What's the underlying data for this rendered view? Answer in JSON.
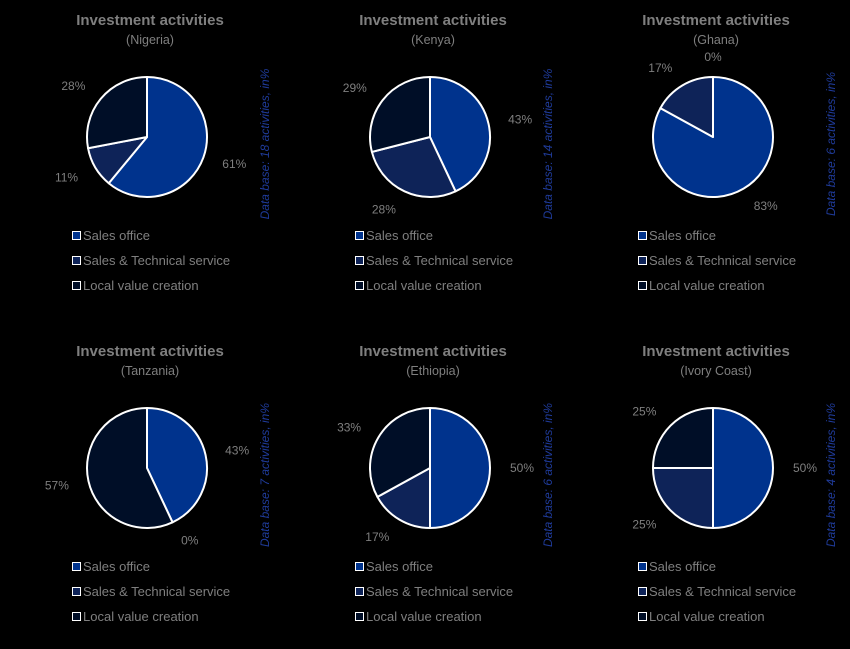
{
  "legend_labels": [
    "Sales office",
    "Sales & Technical service",
    "Local value creation"
  ],
  "colors": [
    "#00338d",
    "#0e2358",
    "#000e27"
  ],
  "chart_data": [
    {
      "type": "pie",
      "title": "Investment activities",
      "subtitle": "(Nigeria)",
      "side_label": "Data base: 18 activities, in%",
      "categories": [
        "Sales office",
        "Sales & Technical service",
        "Local value creation"
      ],
      "values": [
        61,
        11,
        28
      ]
    },
    {
      "type": "pie",
      "title": "Investment activities",
      "subtitle": "(Kenya)",
      "side_label": "Data base: 14 activities, in%",
      "categories": [
        "Sales office",
        "Sales & Technical service",
        "Local value creation"
      ],
      "values": [
        43,
        28,
        29
      ]
    },
    {
      "type": "pie",
      "title": "Investment activities",
      "subtitle": "(Ghana)",
      "side_label": "Data base: 6 activities, in%",
      "categories": [
        "Sales office",
        "Sales & Technical service",
        "Local value creation"
      ],
      "values": [
        83,
        17,
        0
      ]
    },
    {
      "type": "pie",
      "title": "Investment activities",
      "subtitle": "(Tanzania)",
      "side_label": "Data base: 7 activities, in%",
      "categories": [
        "Sales office",
        "Sales & Technical service",
        "Local value creation"
      ],
      "values": [
        43,
        0,
        57
      ]
    },
    {
      "type": "pie",
      "title": "Investment activities",
      "subtitle": "(Ethiopia)",
      "side_label": "Data base: 6 activities, in%",
      "categories": [
        "Sales office",
        "Sales & Technical service",
        "Local value creation"
      ],
      "values": [
        50,
        17,
        33
      ]
    },
    {
      "type": "pie",
      "title": "Investment activities",
      "subtitle": "(Ivory Coast)",
      "side_label": "Data base: 4 activities, in%",
      "categories": [
        "Sales office",
        "Sales & Technical service",
        "Local value creation"
      ],
      "values": [
        50,
        25,
        25
      ]
    }
  ]
}
